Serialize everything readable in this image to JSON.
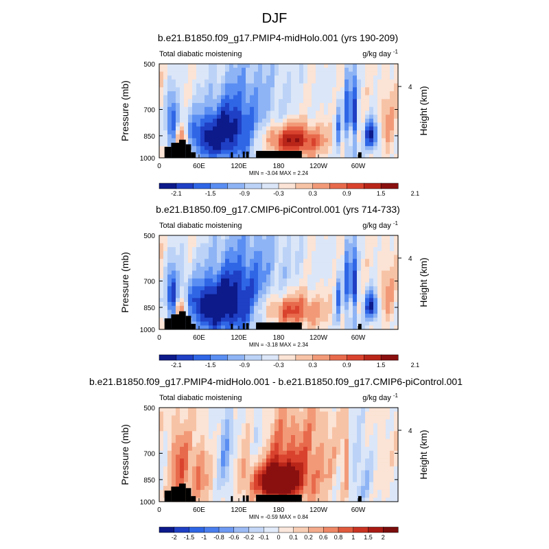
{
  "figure": {
    "title": "DJF"
  },
  "chart_data": [
    {
      "type": "heatmap",
      "title": "b.e21.B1850.f09_g17.PMIP4-midHolo.001 (yrs 190-209)",
      "left_label": "Total diabatic moistening",
      "units_base": "g/kg day",
      "units_sup": "-1",
      "ylabel": "Pressure (mb)",
      "ylabel_right": "Height (km)",
      "ylim": [
        1000,
        500
      ],
      "yticks": [
        "500",
        "700",
        "850",
        "1000"
      ],
      "right_ticks": [
        "4"
      ],
      "xticks": [
        "0",
        "60E",
        "120E",
        "180",
        "120W",
        "60W"
      ],
      "stats": "MIN = -3.04  MAX =  2.24",
      "colorbar_labels": [
        "-2.1",
        "-1.5",
        "-0.9",
        "-0.3",
        "0.3",
        "0.9",
        "1.5",
        "2.1"
      ],
      "scale": 1.0,
      "features": [
        {
          "lon": 200,
          "p": 880,
          "wl": 32,
          "wp": 75,
          "a": 2.2
        },
        {
          "lon": 30,
          "p": 870,
          "wl": 6,
          "wp": 60,
          "a": 1.5
        },
        {
          "lon": 70,
          "p": 860,
          "wl": 25,
          "wp": 110,
          "a": -1.7
        },
        {
          "lon": 110,
          "p": 820,
          "wl": 25,
          "wp": 160,
          "a": -1.3
        },
        {
          "lon": 20,
          "p": 780,
          "wl": 6,
          "wp": 120,
          "a": -1.7
        },
        {
          "lon": 140,
          "p": 700,
          "wl": 40,
          "wp": 250,
          "a": -0.8
        },
        {
          "lon": 285,
          "p": 760,
          "wl": 3,
          "wp": 180,
          "a": -2.4
        },
        {
          "lon": 295,
          "p": 760,
          "wl": 3,
          "wp": 180,
          "a": -2.0
        },
        {
          "lon": 270,
          "p": 800,
          "wl": 4,
          "wp": 120,
          "a": -1.2
        },
        {
          "lon": 320,
          "p": 850,
          "wl": 8,
          "wp": 70,
          "a": -2.1
        },
        {
          "lon": 290,
          "p": 860,
          "wl": 6,
          "wp": 60,
          "a": 1.0
        },
        {
          "lon": 345,
          "p": 780,
          "wl": 10,
          "wp": 150,
          "a": 0.7
        },
        {
          "lon": 40,
          "p": 880,
          "wl": 5,
          "wp": 60,
          "a": 0.9
        }
      ]
    },
    {
      "type": "heatmap",
      "title": "b.e21.B1850.f09_g17.CMIP6-piControl.001 (yrs 714-733)",
      "left_label": "Total diabatic moistening",
      "units_base": "g/kg day",
      "units_sup": "-1",
      "ylabel": "Pressure (mb)",
      "ylabel_right": "Height (km)",
      "ylim": [
        1000,
        500
      ],
      "yticks": [
        "500",
        "700",
        "850",
        "1000"
      ],
      "right_ticks": [
        "4"
      ],
      "xticks": [
        "0",
        "60E",
        "120E",
        "180",
        "120W",
        "60W"
      ],
      "stats": "MIN = -3.18  MAX =  2.34",
      "colorbar_labels": [
        "-2.1",
        "-1.5",
        "-0.9",
        "-0.3",
        "0.3",
        "0.9",
        "1.5",
        "2.1"
      ],
      "scale": 1.0,
      "features": [
        {
          "lon": 195,
          "p": 870,
          "wl": 35,
          "wp": 80,
          "a": 1.7
        },
        {
          "lon": 30,
          "p": 870,
          "wl": 6,
          "wp": 60,
          "a": 1.6
        },
        {
          "lon": 70,
          "p": 850,
          "wl": 28,
          "wp": 120,
          "a": -1.8
        },
        {
          "lon": 115,
          "p": 820,
          "wl": 28,
          "wp": 160,
          "a": -1.3
        },
        {
          "lon": 20,
          "p": 780,
          "wl": 6,
          "wp": 120,
          "a": -1.8
        },
        {
          "lon": 140,
          "p": 690,
          "wl": 45,
          "wp": 260,
          "a": -0.9
        },
        {
          "lon": 285,
          "p": 760,
          "wl": 3,
          "wp": 180,
          "a": -2.4
        },
        {
          "lon": 295,
          "p": 760,
          "wl": 3,
          "wp": 180,
          "a": -2.0
        },
        {
          "lon": 270,
          "p": 800,
          "wl": 4,
          "wp": 120,
          "a": -1.3
        },
        {
          "lon": 320,
          "p": 850,
          "wl": 8,
          "wp": 70,
          "a": -2.0
        },
        {
          "lon": 290,
          "p": 860,
          "wl": 6,
          "wp": 60,
          "a": 1.0
        },
        {
          "lon": 345,
          "p": 780,
          "wl": 10,
          "wp": 150,
          "a": 0.7
        },
        {
          "lon": 40,
          "p": 880,
          "wl": 5,
          "wp": 60,
          "a": 0.9
        }
      ]
    },
    {
      "type": "heatmap",
      "title": "b.e21.B1850.f09_g17.PMIP4-midHolo.001 - b.e21.B1850.f09_g17.CMIP6-piControl.001",
      "left_label": "Total diabatic moistening",
      "units_base": "g/kg day",
      "units_sup": "-1",
      "ylabel": "Pressure (mb)",
      "ylabel_right": "Height (km)",
      "ylim": [
        1000,
        500
      ],
      "yticks": [
        "500",
        "700",
        "850",
        "1000"
      ],
      "right_ticks": [
        "4"
      ],
      "xticks": [
        "0",
        "60E",
        "120E",
        "180",
        "120W",
        "60W"
      ],
      "stats": "MIN = -0.59  MAX =  0.84",
      "colorbar_labels": [
        "-2",
        "-1.5",
        "-1",
        "-0.8",
        "-0.6",
        "-0.2",
        "-0.1",
        "0",
        "0.1",
        "0.2",
        "0.6",
        "0.8",
        "1",
        "1.5",
        "2"
      ],
      "scale": 0.2,
      "features": [
        {
          "lon": 175,
          "p": 860,
          "wl": 25,
          "wp": 80,
          "a": 0.5
        },
        {
          "lon": 200,
          "p": 750,
          "wl": 45,
          "wp": 200,
          "a": 0.25
        },
        {
          "lon": 30,
          "p": 800,
          "wl": 10,
          "wp": 200,
          "a": 0.25
        },
        {
          "lon": 60,
          "p": 820,
          "wl": 12,
          "wp": 150,
          "a": 0.2
        },
        {
          "lon": 100,
          "p": 700,
          "wl": 8,
          "wp": 200,
          "a": -0.2
        },
        {
          "lon": 150,
          "p": 650,
          "wl": 10,
          "wp": 200,
          "a": -0.15
        },
        {
          "lon": 310,
          "p": 800,
          "wl": 20,
          "wp": 200,
          "a": -0.15
        },
        {
          "lon": 330,
          "p": 720,
          "wl": 15,
          "wp": 200,
          "a": 0.1
        },
        {
          "lon": 280,
          "p": 700,
          "wl": 2,
          "wp": 200,
          "a": 0.4
        }
      ]
    }
  ]
}
